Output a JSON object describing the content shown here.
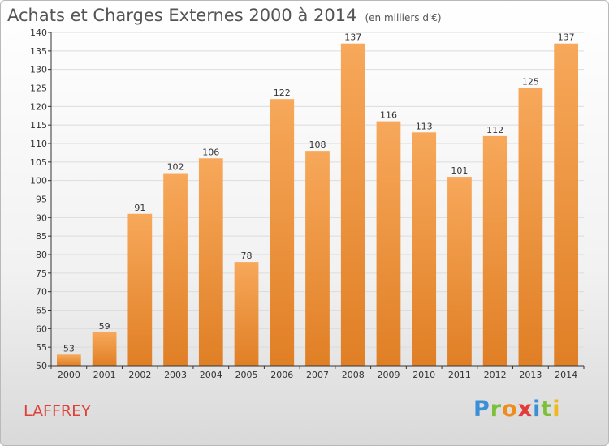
{
  "chart_data": {
    "type": "bar",
    "title": "Achats et Charges Externes 2000 à 2014",
    "subtitle": "(en milliers d'€)",
    "categories": [
      "2000",
      "2001",
      "2002",
      "2003",
      "2004",
      "2005",
      "2006",
      "2007",
      "2008",
      "2009",
      "2010",
      "2011",
      "2012",
      "2013",
      "2014"
    ],
    "values": [
      53,
      59,
      91,
      102,
      106,
      78,
      122,
      108,
      137,
      116,
      113,
      101,
      112,
      125,
      137
    ],
    "ylim": [
      50,
      140
    ],
    "yticks": [
      50,
      55,
      60,
      65,
      70,
      75,
      80,
      85,
      90,
      95,
      100,
      105,
      110,
      115,
      120,
      125,
      130,
      135,
      140
    ],
    "grid": true,
    "legend": "none",
    "colors": {
      "bar_light": "#f7a85a",
      "bar_dark": "#e07f25",
      "grid": "#dcdcdc",
      "axis": "#333333"
    }
  },
  "footer": {
    "commune": "LAFFREY",
    "brand_letters": [
      {
        "char": "P",
        "color": "#3a8fd6"
      },
      {
        "char": "r",
        "color": "#7bbf3a"
      },
      {
        "char": "o",
        "color": "#f08c1a"
      },
      {
        "char": "x",
        "color": "#e23b3b"
      },
      {
        "char": "i",
        "color": "#3a8fd6"
      },
      {
        "char": "t",
        "color": "#7bbf3a"
      },
      {
        "char": "i",
        "color": "#f0b81a"
      }
    ]
  }
}
